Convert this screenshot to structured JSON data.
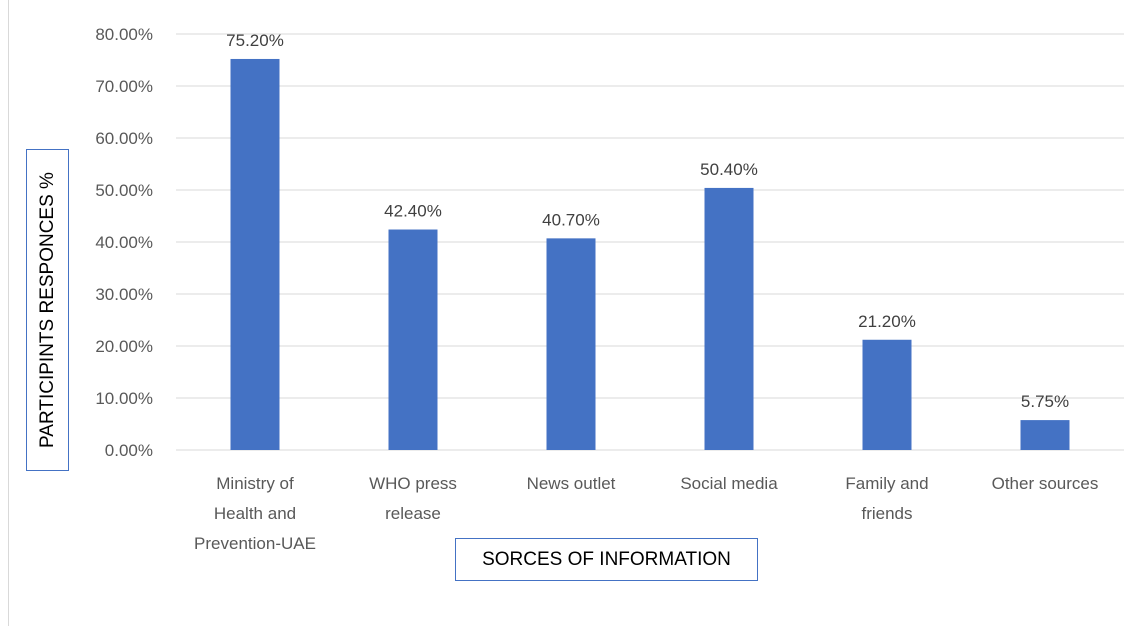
{
  "chart_data": {
    "type": "bar",
    "categories": [
      [
        "Ministry of",
        "Health and",
        "Prevention-UAE"
      ],
      [
        "WHO press",
        "release"
      ],
      [
        "News outlet"
      ],
      [
        "Social media"
      ],
      [
        "Family and",
        "friends"
      ],
      [
        "Other sources"
      ]
    ],
    "values": [
      75.2,
      42.4,
      40.7,
      50.4,
      21.2,
      5.75
    ],
    "data_labels": [
      "75.20%",
      "42.40%",
      "40.70%",
      "50.40%",
      "21.20%",
      "5.75%"
    ],
    "yticks": [
      "0.00%",
      "10.00%",
      "20.00%",
      "30.00%",
      "40.00%",
      "50.00%",
      "60.00%",
      "70.00%",
      "80.00%"
    ],
    "ylim": [
      0,
      80
    ],
    "xlabel": "SORCES OF INFORMATION",
    "ylabel": "PARTICIPINTS RESPONCES %",
    "grid": true,
    "bar_color": "#4472c4",
    "grid_color": "#d9d9d9"
  }
}
